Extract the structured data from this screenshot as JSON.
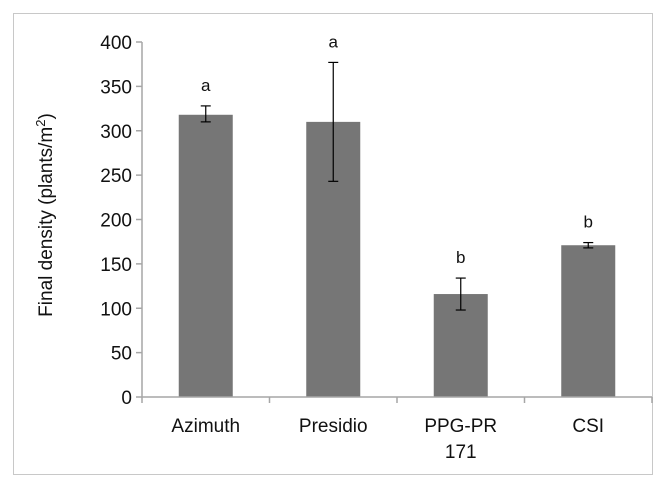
{
  "chart_data": {
    "type": "bar",
    "categories": [
      "Azimuth",
      "Presidio",
      "PPG-PR 171",
      "CSI"
    ],
    "category_label_lines": [
      [
        "Azimuth"
      ],
      [
        "Presidio"
      ],
      [
        "PPG-PR",
        "171"
      ],
      [
        "CSI"
      ]
    ],
    "values": [
      318,
      310,
      116,
      171
    ],
    "error_high": [
      328,
      377,
      134,
      174
    ],
    "error_low": [
      310,
      243,
      98,
      168
    ],
    "significance": [
      "a",
      "a",
      "b",
      "b"
    ],
    "ylabel_main": "Final density (plants/m",
    "ylabel_sup": "2",
    "ylabel_end": ")",
    "xlabel": "",
    "ylim": [
      0,
      400
    ],
    "yticks": [
      0,
      50,
      100,
      150,
      200,
      250,
      300,
      350,
      400
    ],
    "grid": false,
    "bar_color": "#767676",
    "axis_color": "#a6a6a6"
  }
}
